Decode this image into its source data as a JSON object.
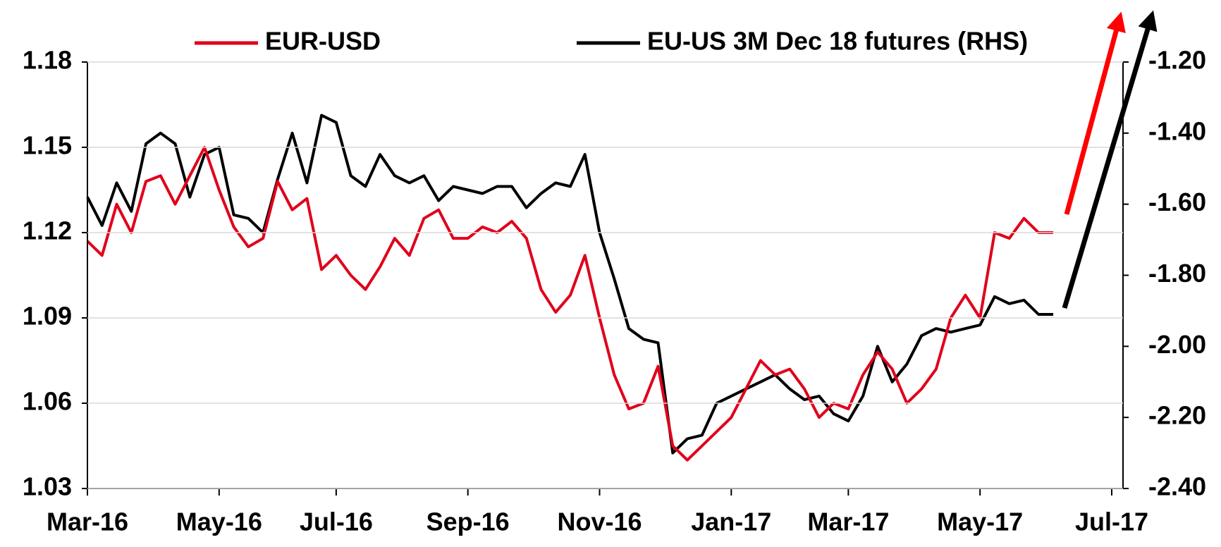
{
  "chart_data": {
    "type": "line",
    "categories": [
      "Mar-16",
      null,
      null,
      null,
      null,
      null,
      null,
      null,
      null,
      "May-16",
      null,
      null,
      null,
      null,
      null,
      null,
      null,
      "Jul-16",
      null,
      null,
      null,
      null,
      null,
      null,
      null,
      null,
      "Sep-16",
      null,
      null,
      null,
      null,
      null,
      null,
      null,
      null,
      "Nov-16",
      null,
      null,
      null,
      null,
      null,
      null,
      null,
      null,
      "Jan-17",
      null,
      null,
      null,
      null,
      null,
      null,
      null,
      "Mar-17",
      null,
      null,
      null,
      null,
      null,
      null,
      null,
      null,
      "May-17",
      null,
      null,
      null,
      null,
      null,
      null,
      null,
      null,
      "Jul-17"
    ],
    "series": [
      {
        "name": "EUR-USD",
        "color": "#e0001b",
        "axis": "y",
        "values": [
          1.117,
          1.112,
          1.13,
          1.12,
          1.138,
          1.14,
          1.13,
          1.14,
          1.15,
          1.135,
          1.122,
          1.115,
          1.118,
          1.138,
          1.128,
          1.132,
          1.107,
          1.112,
          1.105,
          1.1,
          1.108,
          1.118,
          1.112,
          1.125,
          1.128,
          1.118,
          1.118,
          1.122,
          1.12,
          1.124,
          1.118,
          1.1,
          1.092,
          1.098,
          1.112,
          1.09,
          1.07,
          1.058,
          1.06,
          1.073,
          1.045,
          1.04,
          1.045,
          1.05,
          1.055,
          1.065,
          1.075,
          1.07,
          1.072,
          1.065,
          1.055,
          1.06,
          1.058,
          1.07,
          1.078,
          1.072,
          1.06,
          1.065,
          1.072,
          1.09,
          1.098,
          1.09,
          1.12,
          1.118,
          1.125,
          1.12,
          1.12,
          null,
          null,
          null,
          null
        ]
      },
      {
        "name": "EU-US 3M Dec 18 futures (RHS)",
        "color": "#000000",
        "axis": "y2",
        "values": [
          -1.58,
          -1.66,
          -1.54,
          -1.62,
          -1.43,
          -1.4,
          -1.43,
          -1.58,
          -1.46,
          -1.44,
          -1.63,
          -1.64,
          -1.68,
          -1.53,
          -1.4,
          -1.54,
          -1.35,
          -1.37,
          -1.52,
          -1.55,
          -1.46,
          -1.52,
          -1.54,
          -1.52,
          -1.59,
          -1.55,
          -1.56,
          -1.57,
          -1.55,
          -1.55,
          -1.61,
          -1.57,
          -1.54,
          -1.55,
          -1.46,
          -1.68,
          -1.81,
          -1.95,
          -1.98,
          -1.99,
          -2.3,
          -2.26,
          -2.25,
          -2.16,
          -2.14,
          -2.12,
          -2.1,
          -2.08,
          -2.12,
          -2.15,
          -2.14,
          -2.19,
          -2.21,
          -2.14,
          -2.0,
          -2.1,
          -2.05,
          -1.97,
          -1.95,
          -1.96,
          -1.95,
          -1.94,
          -1.86,
          -1.88,
          -1.87,
          -1.91,
          -1.91,
          null,
          null,
          null,
          null
        ]
      }
    ],
    "ylim": [
      1.03,
      1.18
    ],
    "yticks": [
      1.03,
      1.06,
      1.09,
      1.12,
      1.15,
      1.18
    ],
    "y2lim": [
      -2.4,
      -1.2
    ],
    "y2ticks": [
      {
        "value": -2.4,
        "label": "-2.40"
      },
      {
        "value": -2.2,
        "label": "-2.20"
      },
      {
        "value": -2.0,
        "label": "-2.00"
      },
      {
        "value": -1.8,
        "label": "-1.80"
      },
      {
        "value": -1.6,
        "label": "-1.60"
      },
      {
        "value": -1.4,
        "label": "-1.40"
      },
      {
        "value": -1.2,
        "label": "-1.20"
      }
    ],
    "grid": true
  }
}
